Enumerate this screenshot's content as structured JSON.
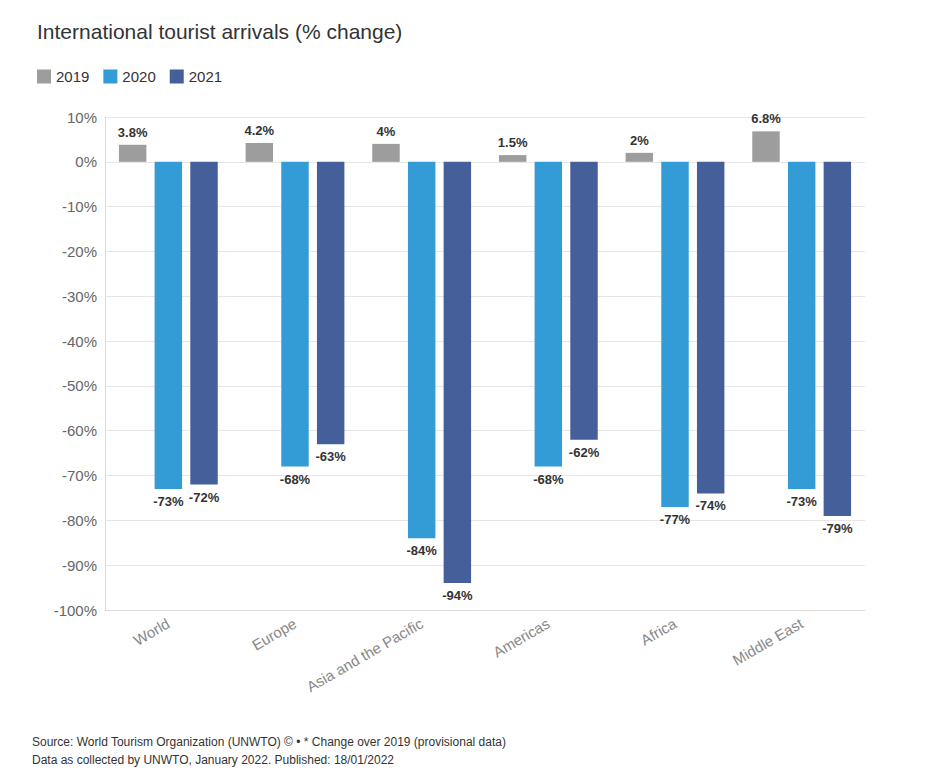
{
  "chart_data": {
    "type": "bar",
    "title": "International tourist arrivals (% change)",
    "categories": [
      "World",
      "Europe",
      "Asia and the Pacific",
      "Americas",
      "Africa",
      "Middle East"
    ],
    "series": [
      {
        "name": "2019",
        "color": "#9d9d9d",
        "values": [
          3.8,
          4.2,
          4,
          1.5,
          2,
          6.8
        ],
        "value_labels": [
          "3.8%",
          "4.2%",
          "4%",
          "1.5%",
          "2%",
          "6.8%"
        ]
      },
      {
        "name": "2020",
        "color": "#339cd6",
        "values": [
          -73,
          -68,
          -84,
          -68,
          -77,
          -73
        ],
        "value_labels": [
          "-73%",
          "-68%",
          "-84%",
          "-68%",
          "-77%",
          "-73%"
        ]
      },
      {
        "name": "2021",
        "color": "#445f99",
        "values": [
          -72,
          -63,
          -94,
          -62,
          -74,
          -79
        ],
        "value_labels": [
          "-72%",
          "-63%",
          "-94%",
          "-62%",
          "-74%",
          "-79%"
        ]
      }
    ],
    "ylim": [
      -100,
      10
    ],
    "yticks": [
      {
        "value": -100,
        "label": "-100%"
      },
      {
        "value": -90,
        "label": "-90%"
      },
      {
        "value": -80,
        "label": "-80%"
      },
      {
        "value": -70,
        "label": "-70%"
      },
      {
        "value": -60,
        "label": "-60%"
      },
      {
        "value": -50,
        "label": "-50%"
      },
      {
        "value": -40,
        "label": "-40%"
      },
      {
        "value": -30,
        "label": "-30%"
      },
      {
        "value": -20,
        "label": "-20%"
      },
      {
        "value": -10,
        "label": "-10%"
      },
      {
        "value": 0,
        "label": "0%"
      },
      {
        "value": 10,
        "label": "10%"
      }
    ],
    "grid": true,
    "legend": "top-left",
    "data_labels": true,
    "annotations": [
      "Source: World Tourism Organization (UNWTO) © • * Change over 2019 (provisional data)",
      "Data as collected by UNWTO, January 2022. Published: 18/01/2022"
    ]
  }
}
